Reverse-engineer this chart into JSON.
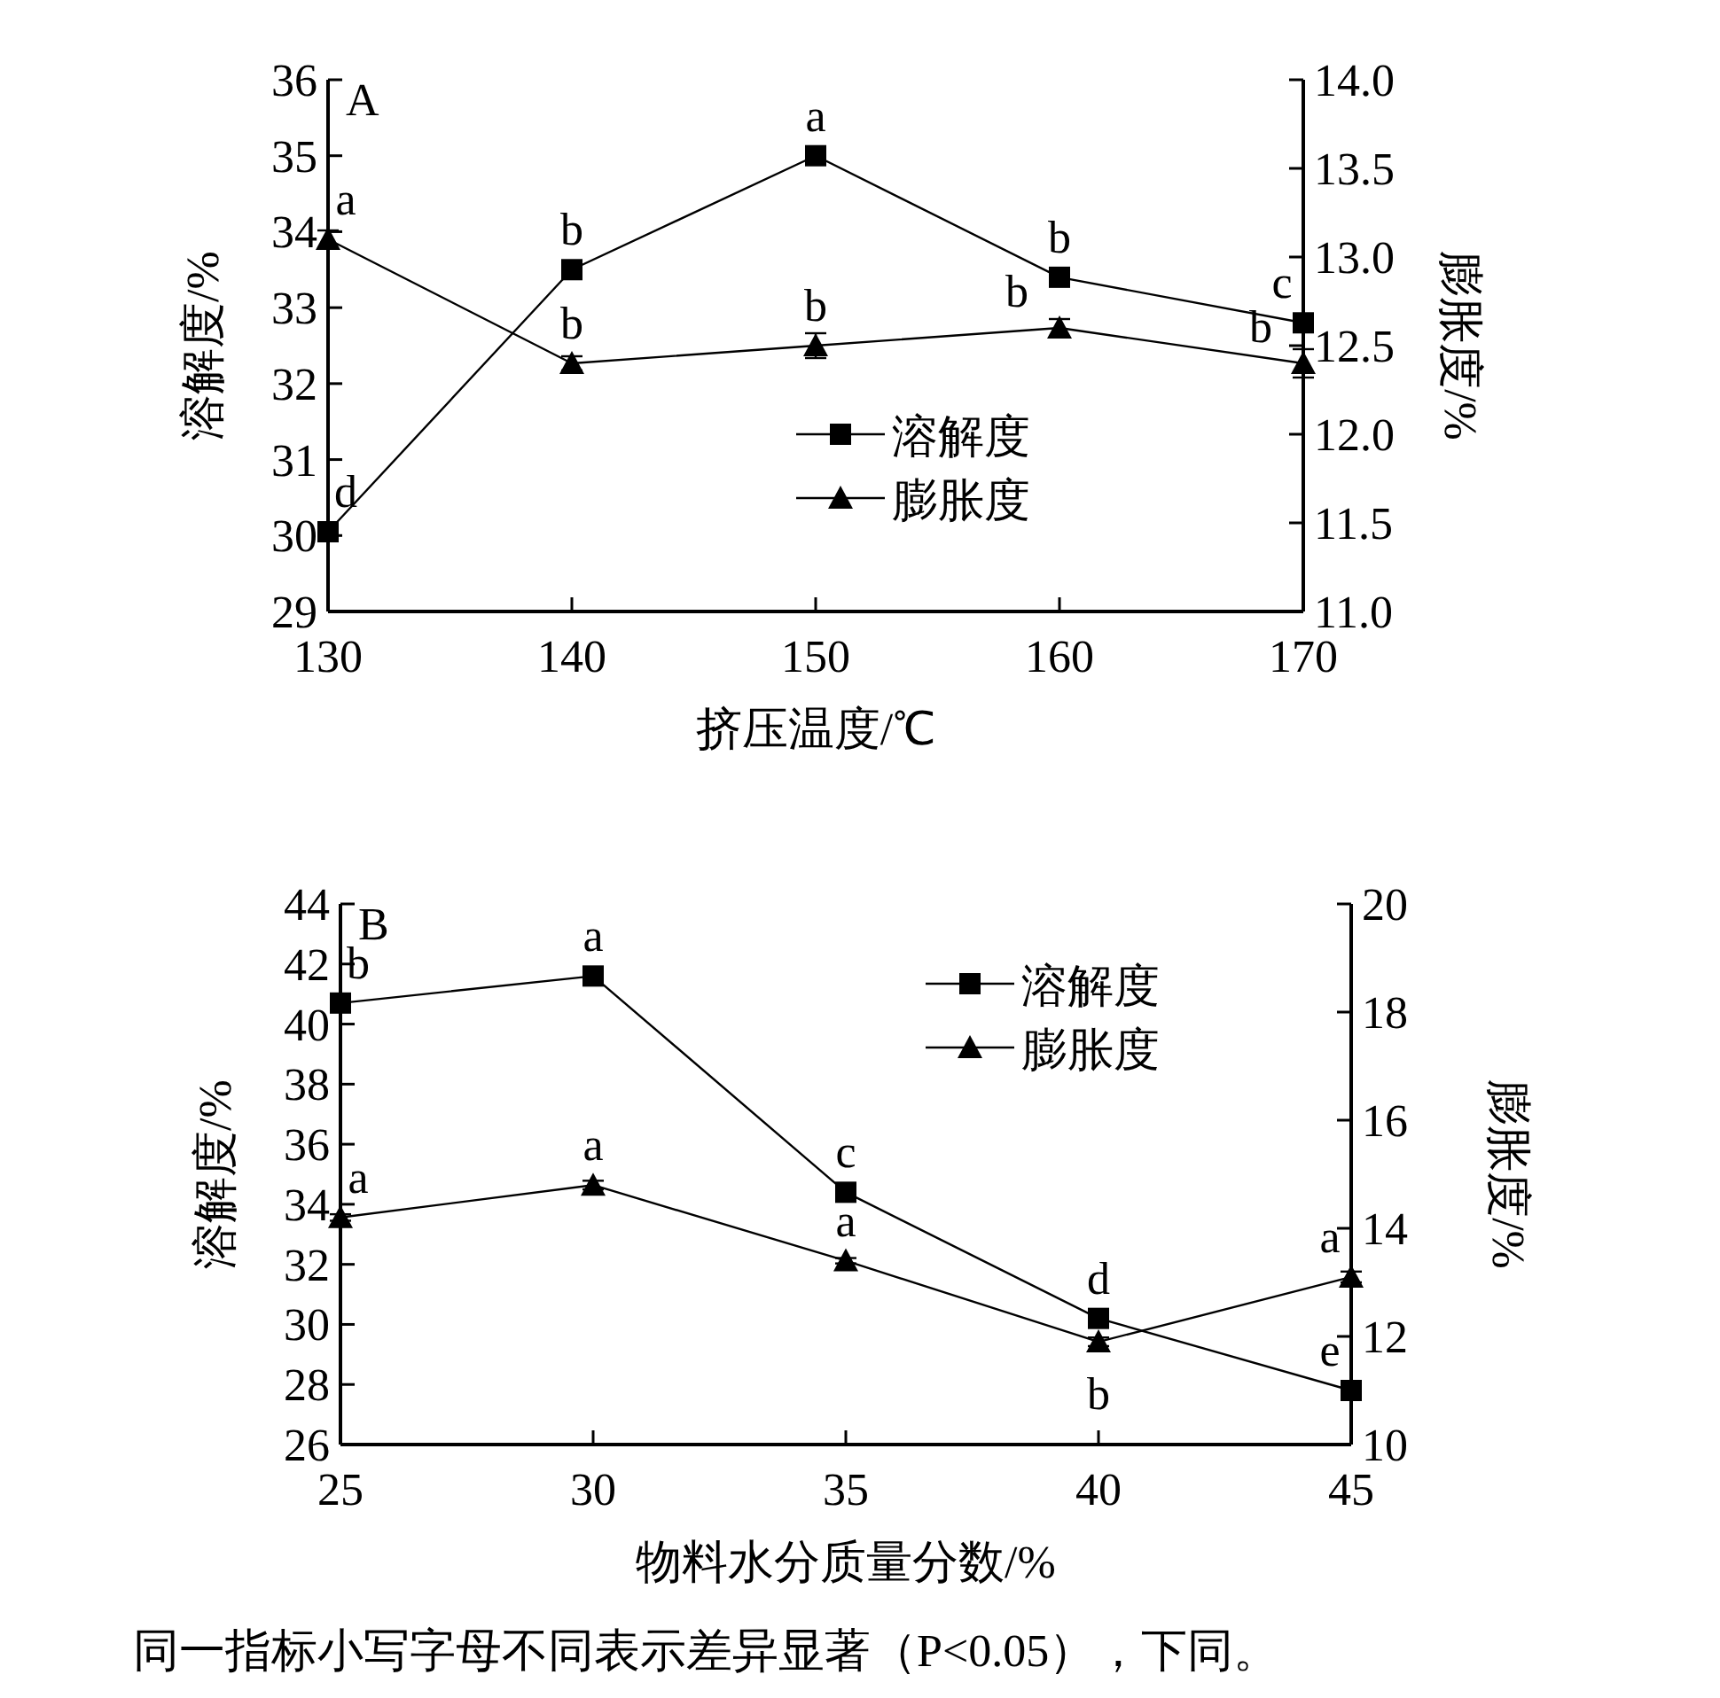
{
  "chart_data": [
    {
      "type": "line",
      "title": "A",
      "xlabel": "挤压温度/℃",
      "ylabel": "溶解度/%",
      "y2label": "膨胀度/%",
      "x": [
        130,
        140,
        150,
        160,
        170
      ],
      "xlim": [
        130,
        170
      ],
      "xticks": [
        130,
        140,
        150,
        160,
        170
      ],
      "ylim": [
        29,
        36
      ],
      "yticks": [
        29,
        30,
        31,
        32,
        33,
        34,
        35,
        36
      ],
      "y2lim": [
        11,
        14
      ],
      "y2ticks": [
        {
          "value": 11,
          "label": "11.0"
        },
        11.5,
        {
          "value": 12,
          "label": "12.0"
        },
        12.5,
        {
          "value": 13,
          "label": "13.0"
        },
        13.5,
        {
          "value": 14,
          "label": "14.0"
        }
      ],
      "legend": "bottom",
      "grid": false,
      "series": [
        {
          "name": "溶解度",
          "color": "#000000",
          "marker": "square",
          "values": [
            30.05,
            33.5,
            35.0,
            33.4,
            32.8
          ],
          "value_labels": [
            "d",
            "b",
            "a",
            "b",
            "c"
          ]
        },
        {
          "name": "膨胀度",
          "color": "#000000",
          "marker": "triangle",
          "axis": "y2",
          "values": [
            13.1,
            12.4,
            12.5,
            12.6,
            12.4
          ],
          "errors": [
            0.05,
            0.04,
            0.07,
            0.05,
            0.08
          ],
          "value_labels": [
            "a",
            "b",
            "b",
            "b",
            "b"
          ]
        }
      ]
    },
    {
      "type": "line",
      "title": "B",
      "xlabel": "物料水分质量分数/%",
      "ylabel": "溶解度/%",
      "y2label": "膨胀度/%",
      "x": [
        25,
        30,
        35,
        40,
        45
      ],
      "xlim": [
        25,
        45
      ],
      "xticks": [
        25,
        30,
        35,
        40,
        45
      ],
      "ylim": [
        26,
        44
      ],
      "yticks": [
        26,
        28,
        30,
        32,
        34,
        36,
        38,
        40,
        42,
        44
      ],
      "y2lim": [
        10,
        20
      ],
      "y2ticks": [
        10,
        12,
        14,
        16,
        18,
        20
      ],
      "legend": "top right",
      "grid": false,
      "series": [
        {
          "name": "溶解度",
          "color": "#000000",
          "marker": "square",
          "values": [
            40.7,
            41.6,
            34.4,
            30.2,
            27.8
          ],
          "value_labels": [
            "b",
            "a",
            "c",
            "d",
            "e"
          ]
        },
        {
          "name": "膨胀度",
          "color": "#000000",
          "marker": "triangle",
          "axis": "y2",
          "values": [
            14.2,
            14.8,
            13.4,
            11.9,
            13.1
          ],
          "errors": [
            0.06,
            0.08,
            0.05,
            0.08,
            0.1
          ],
          "value_labels": [
            "a",
            "a",
            "a",
            "b",
            "a"
          ]
        }
      ],
      "annotations": [
        "同一指标小写字母不同表示差异显著（P<0.05），下同。"
      ]
    }
  ]
}
